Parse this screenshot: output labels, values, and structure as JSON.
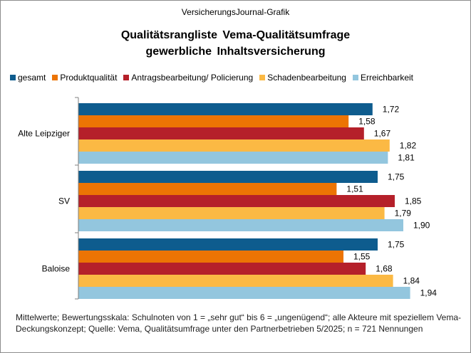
{
  "header": {
    "source": "VersicherungsJournal-Grafik",
    "title_line1": "Qualitätsrangliste  Vema-Qualitätsumfrage",
    "title_line2": "gewerbliche  Inhaltsversicherung"
  },
  "footnote": "Mittelwerte; Bewertungsskala: Schulnoten von 1 = „sehr gut“ bis 6 = „ungenügend“;  alle Akteure mit speziellem Vema-Deckungskonzept; Quelle: Vema, Qualitätsumfrage unter den Partnerbetrieben 5/2025; n = 721 Nennungen",
  "chart_data": {
    "type": "bar",
    "orientation": "horizontal",
    "title": "Qualitätsrangliste  Vema-Qualitätsumfrage gewerbliche  Inhaltsversicherung",
    "xlabel": "",
    "ylabel": "",
    "grid": false,
    "legend_position": "top",
    "xlim": [
      0,
      2
    ],
    "categories": [
      "Alte Leipziger",
      "SV",
      "Baloise"
    ],
    "series": [
      {
        "name": "gesamt",
        "color": "#0e5c8e",
        "values": [
          1.72,
          1.75,
          1.75
        ],
        "labels": [
          "1,72",
          "1,75",
          "1,75"
        ]
      },
      {
        "name": "Produktqualität",
        "color": "#ec7404",
        "values": [
          1.58,
          1.51,
          1.55
        ],
        "labels": [
          "1,58",
          "1,51",
          "1,55"
        ]
      },
      {
        "name": "Antragsbearbeitung/ Policierung",
        "color": "#b5202a",
        "values": [
          1.67,
          1.85,
          1.68
        ],
        "labels": [
          "1,67",
          "1,85",
          "1,68"
        ]
      },
      {
        "name": "Schadenbearbeitung",
        "color": "#fbb944",
        "values": [
          1.82,
          1.79,
          1.84
        ],
        "labels": [
          "1,82",
          "1,79",
          "1,84"
        ]
      },
      {
        "name": "Erreichbarkeit",
        "color": "#93c6de",
        "values": [
          1.81,
          1.9,
          1.94
        ],
        "labels": [
          "1,81",
          "1,90",
          "1,94"
        ]
      }
    ]
  }
}
